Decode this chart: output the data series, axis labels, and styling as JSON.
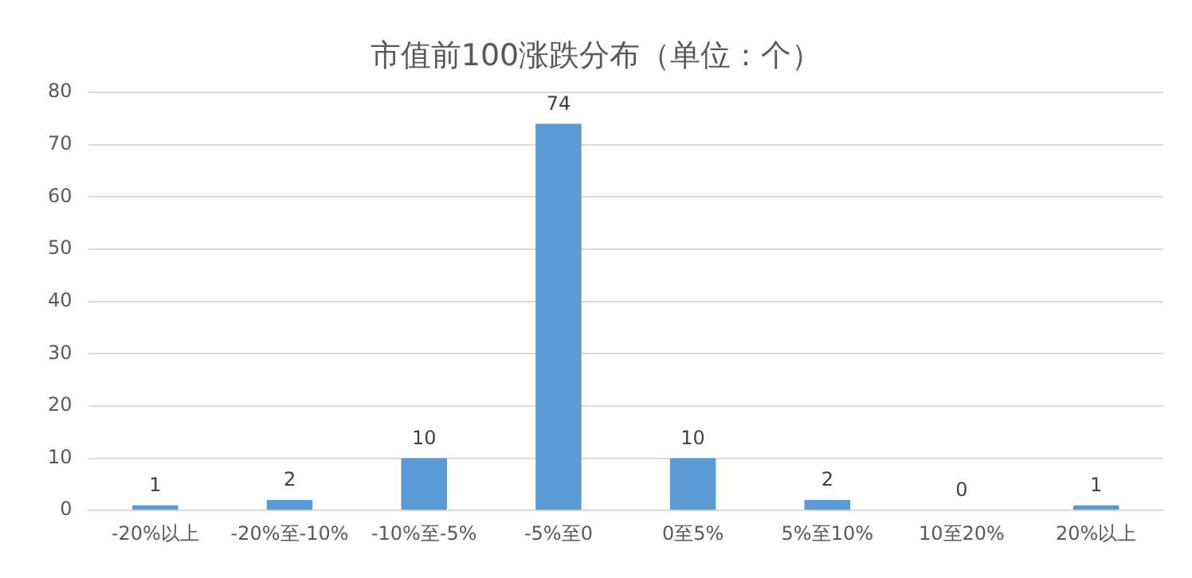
{
  "chart_data": {
    "type": "bar",
    "title": "市值前100涨跌分布（单位：个）",
    "categories": [
      "-20%以上",
      "-20%至-10%",
      "-10%至-5%",
      "-5%至0",
      "0至5%",
      "5%至10%",
      "10至20%",
      "20%以上"
    ],
    "values": [
      1,
      2,
      10,
      74,
      10,
      2,
      0,
      1
    ],
    "color": "#5b9bd5",
    "ylim": [
      0,
      80
    ],
    "yticks": [
      0,
      10,
      20,
      30,
      40,
      50,
      60,
      70,
      80
    ],
    "grid": "y",
    "data_labels": true,
    "legend": false
  }
}
